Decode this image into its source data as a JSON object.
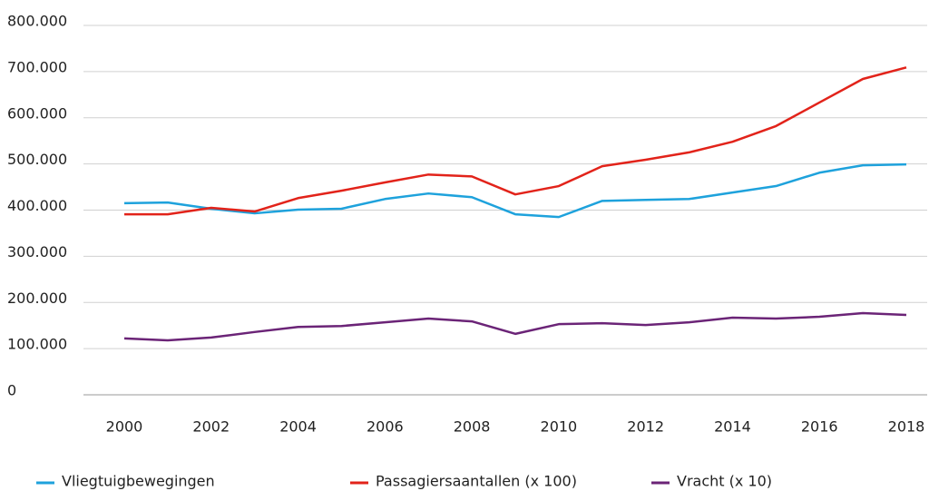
{
  "chart_data": {
    "type": "line",
    "x": [
      2000,
      2001,
      2002,
      2003,
      2004,
      2005,
      2006,
      2007,
      2008,
      2009,
      2010,
      2011,
      2012,
      2013,
      2014,
      2015,
      2016,
      2017,
      2018
    ],
    "series": [
      {
        "name": "Vliegtuigbewegingen",
        "color": "#1ea2dc",
        "values": [
          415000,
          416500,
          403000,
          393000,
          401000,
          403000,
          424000,
          436000,
          428000,
          391000,
          385000,
          420000,
          422000,
          424000,
          438000,
          452000,
          481000,
          497000,
          499000
        ]
      },
      {
        "name": "Passagiersaantallen (x 100)",
        "color": "#e2231a",
        "values": [
          391000,
          391000,
          405000,
          397000,
          426000,
          442000,
          460000,
          477000,
          473000,
          434000,
          452000,
          495000,
          509000,
          525000,
          548000,
          582000,
          633000,
          684000,
          709000
        ]
      },
      {
        "name": "Vracht (x 10)",
        "color": "#6b2477",
        "values": [
          122000,
          118000,
          124000,
          136000,
          147000,
          149000,
          157000,
          165000,
          159000,
          132000,
          153000,
          155000,
          151000,
          157000,
          167000,
          165000,
          169000,
          177000,
          173000
        ]
      }
    ],
    "xlim": [
      2000,
      2018
    ],
    "xticks": [
      2000,
      2002,
      2004,
      2006,
      2008,
      2010,
      2012,
      2014,
      2016,
      2018
    ],
    "ylim": [
      0,
      800000
    ],
    "yticks": [
      0,
      {
        "value": 100000,
        "label": "100.000"
      },
      {
        "value": 200000,
        "label": "200.000"
      },
      {
        "value": 300000,
        "label": "300.000"
      },
      {
        "value": 400000,
        "label": "400.000"
      },
      {
        "value": 500000,
        "label": "500.000"
      },
      {
        "value": 600000,
        "label": "600.000"
      },
      {
        "value": 700000,
        "label": "700.000"
      },
      {
        "value": 800000,
        "label": "800.000"
      }
    ],
    "grid": true,
    "legend": "bottom"
  }
}
